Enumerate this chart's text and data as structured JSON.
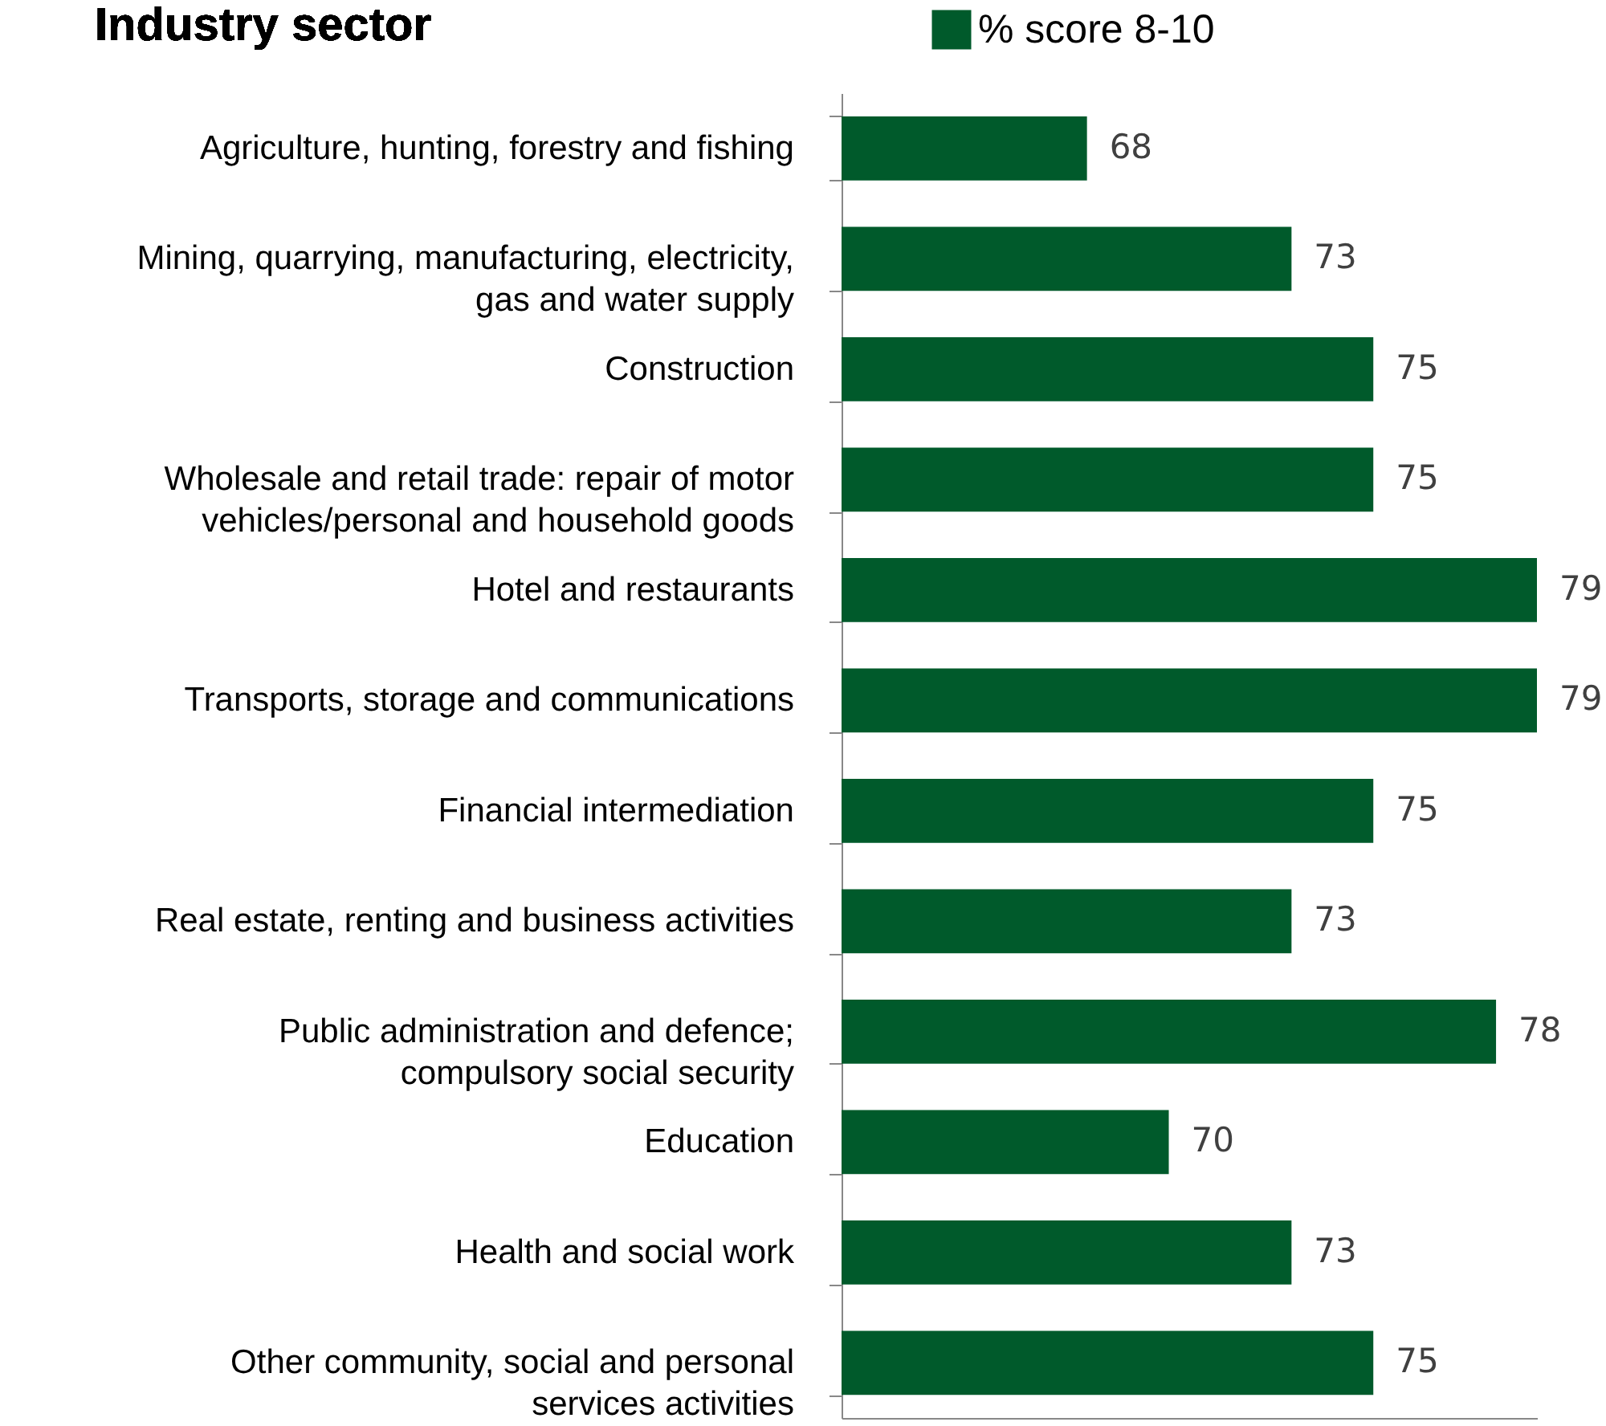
{
  "chart_data": {
    "type": "bar",
    "orientation": "horizontal",
    "title": "Industry sector",
    "categories": [
      "Agriculture, hunting, forestry and fishing",
      "Mining, quarrying, manufacturing, electricity,\ngas and water supply",
      "Construction",
      "Wholesale and retail trade: repair of motor\nvehicles/personal and household goods",
      "Hotel and restaurants",
      "Transports, storage and communications",
      "Financial intermediation",
      "Real estate, renting and business activities",
      "Public administration and defence;\ncompulsory social security",
      "Education",
      "Health and social work",
      "Other community, social and personal\nservices activities"
    ],
    "series": [
      {
        "name": "% score 8-10",
        "color": "#005a2b",
        "values": [
          68,
          73,
          75,
          75,
          79,
          79,
          75,
          73,
          78,
          70,
          73,
          75
        ]
      }
    ],
    "xlim": [
      62,
      79
    ],
    "tick_labels": "y",
    "data_labels": true,
    "legend": "top"
  }
}
